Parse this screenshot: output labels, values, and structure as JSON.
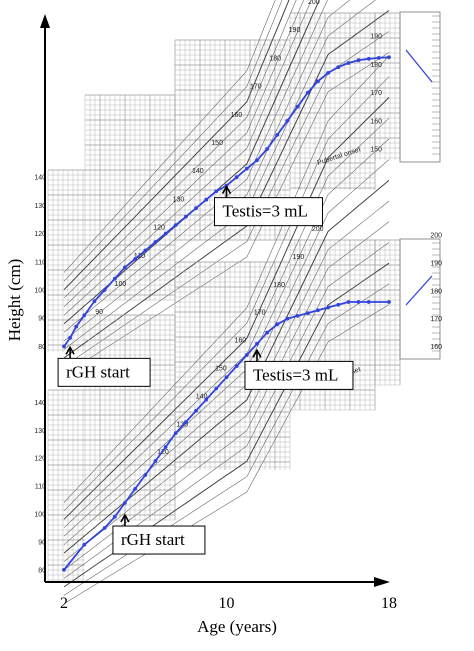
{
  "chart_data": {
    "type": "line",
    "xlabel": "Age (years)",
    "ylabel": "Height (cm)",
    "x_ticks": [
      "2",
      "10",
      "18"
    ],
    "xlim": [
      2,
      18
    ],
    "background_grid_label": "Pubertal onset",
    "panels": [
      {
        "position": "top",
        "ylim": [
          78,
          200
        ],
        "left_ticks": [
          "140",
          "130",
          "120",
          "110",
          "100",
          "90",
          "80"
        ],
        "inner_ticks": [
          "200",
          "190",
          "180",
          "170",
          "160",
          "150",
          "140",
          "130",
          "120",
          "110",
          "100",
          "90"
        ],
        "right_ticks": [
          "190",
          "180",
          "170",
          "160",
          "150"
        ],
        "series": [
          {
            "x": [
              2.0,
              2.3,
              2.6,
              3.0,
              3.5,
              4.0,
              4.5,
              5.0,
              5.5,
              6.0,
              6.5,
              7.0,
              7.5,
              8.0,
              8.5,
              9.0,
              9.5,
              10.0,
              10.5,
              11.0,
              11.5,
              12.0,
              12.5,
              13.0,
              13.5,
              14.0,
              14.5,
              15.0,
              15.5,
              16.0,
              16.5,
              17.0,
              17.5,
              18.0
            ],
            "values": [
              80,
              83,
              87,
              91,
              96,
              100,
              104,
              108,
              111,
              114,
              117,
              120,
              123,
              126,
              129,
              132,
              135,
              137,
              140,
              143,
              146,
              150,
              155,
              160,
              165,
              170,
              174,
              177,
              179,
              180.5,
              181.5,
              182,
              182.3,
              182.5
            ]
          }
        ],
        "annotations": [
          {
            "label": "Testis=3 mL",
            "x": 10.0,
            "y": 137
          },
          {
            "label": "rGH start",
            "x": 2.3,
            "y": 80
          }
        ]
      },
      {
        "position": "bottom",
        "ylim": [
          76,
          200
        ],
        "left_ticks": [
          "140",
          "130",
          "120",
          "110",
          "100",
          "90",
          "80"
        ],
        "inner_ticks": [
          "200",
          "190",
          "180",
          "170",
          "160",
          "150",
          "140",
          "130",
          "120"
        ],
        "right_ticks": [
          "200",
          "190",
          "180",
          "170",
          "160"
        ],
        "series": [
          {
            "x": [
              2.0,
              3.0,
              4.0,
              4.5,
              5.0,
              5.5,
              6.0,
              6.5,
              7.0,
              7.5,
              8.0,
              8.5,
              9.0,
              9.5,
              10.0,
              10.5,
              11.0,
              11.5,
              12.0,
              12.5,
              13.0,
              13.5,
              14.0,
              14.5,
              15.0,
              15.5,
              16.0,
              16.5,
              17.0,
              18.0
            ],
            "values": [
              80,
              89,
              95,
              99,
              104,
              109,
              114,
              119,
              124,
              129,
              133,
              137,
              141,
              145,
              149,
              153,
              157,
              161,
              165,
              168,
              170,
              171,
              172,
              173,
              174,
              175,
              176,
              176,
              176,
              176
            ]
          }
        ],
        "annotations": [
          {
            "label": "Testis=3 mL",
            "x": 11.5,
            "y": 159
          },
          {
            "label": "rGH start",
            "x": 5.0,
            "y": 100
          }
        ]
      }
    ]
  },
  "colors": {
    "series": "#3344dd",
    "axis": "#000000",
    "grid": "#9a9a9a",
    "curve": "#6a6a6a"
  }
}
